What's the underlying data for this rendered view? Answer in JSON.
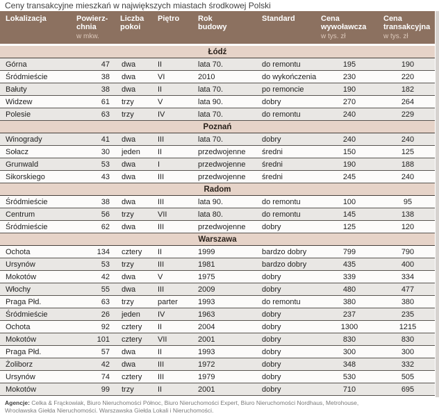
{
  "title": "Ceny transakcyjne mieszkań w największych miastach środkowej Polski",
  "table": {
    "columns": [
      {
        "key": "lokalizacja",
        "lines": [
          "Lokalizacja"
        ],
        "sub": ""
      },
      {
        "key": "powierzchnia",
        "lines": [
          "Powierz-",
          "chnia"
        ],
        "sub": "w mkw."
      },
      {
        "key": "liczba-pokoi",
        "lines": [
          "Liczba",
          "pokoi"
        ],
        "sub": ""
      },
      {
        "key": "pietro",
        "lines": [
          "Piętro"
        ],
        "sub": ""
      },
      {
        "key": "rok-budowy",
        "lines": [
          "Rok",
          "budowy"
        ],
        "sub": ""
      },
      {
        "key": "standard",
        "lines": [
          "Standard"
        ],
        "sub": ""
      },
      {
        "key": "cena-wywolawcza",
        "lines": [
          "Cena",
          "wywoławcza"
        ],
        "sub": "w tys. zł"
      },
      {
        "key": "cena-transakcyjna",
        "lines": [
          "Cena",
          "transakcyjna"
        ],
        "sub": "w tys. zł"
      }
    ]
  },
  "sections": [
    {
      "name": "Łódź",
      "rows": [
        [
          "Górna",
          "47",
          "dwa",
          "II",
          "lata 70.",
          "do remontu",
          "195",
          "190"
        ],
        [
          "Śródmieście",
          "38",
          "dwa",
          "VI",
          "2010",
          "do wykończenia",
          "230",
          "220"
        ],
        [
          "Bałuty",
          "38",
          "dwa",
          "II",
          "lata 70.",
          "po remoncie",
          "190",
          "182"
        ],
        [
          "Widzew",
          "61",
          "trzy",
          "V",
          "lata 90.",
          "dobry",
          "270",
          "264"
        ],
        [
          "Polesie",
          "63",
          "trzy",
          "IV",
          "lata 70.",
          "do remontu",
          "240",
          "229"
        ]
      ]
    },
    {
      "name": "Poznań",
      "rows": [
        [
          "Winogrady",
          "41",
          "dwa",
          "III",
          "lata 70.",
          "dobry",
          "240",
          "240"
        ],
        [
          "Sołacz",
          "30",
          "jeden",
          "II",
          "przedwojenne",
          "średni",
          "150",
          "125"
        ],
        [
          "Grunwald",
          "53",
          "dwa",
          "I",
          "przedwojenne",
          "średni",
          "190",
          "188"
        ],
        [
          "Sikorskiego",
          "43",
          "dwa",
          "III",
          "przedwojenne",
          "średni",
          "245",
          "240"
        ]
      ]
    },
    {
      "name": "Radom",
      "rows": [
        [
          "Śródmieście",
          "38",
          "dwa",
          "III",
          "lata 90.",
          "do remontu",
          "100",
          "95"
        ],
        [
          "Centrum",
          "56",
          "trzy",
          "VII",
          "lata 80.",
          "do remontu",
          "145",
          "138"
        ],
        [
          "Śródmieście",
          "62",
          "dwa",
          "III",
          "przedwojenne",
          "dobry",
          "125",
          "120"
        ]
      ]
    },
    {
      "name": "Warszawa",
      "rows": [
        [
          "Ochota",
          "134",
          "cztery",
          "II",
          "1999",
          "bardzo dobry",
          "799",
          "790"
        ],
        [
          "Ursynów",
          "53",
          "trzy",
          "III",
          "1981",
          "bardzo dobry",
          "435",
          "400"
        ],
        [
          "Mokotów",
          "42",
          "dwa",
          "V",
          "1975",
          "dobry",
          "339",
          "334"
        ],
        [
          "Włochy",
          "55",
          "dwa",
          "III",
          "2009",
          "dobry",
          "480",
          "477"
        ],
        [
          "Praga Płd.",
          "63",
          "trzy",
          "parter",
          "1993",
          "do remontu",
          "380",
          "380"
        ],
        [
          "Śródmieście",
          "26",
          "jeden",
          "IV",
          "1963",
          "dobry",
          "237",
          "235"
        ],
        [
          "Ochota",
          "92",
          "cztery",
          "II",
          "2004",
          "dobry",
          "1300",
          "1215"
        ],
        [
          "Mokotów",
          "101",
          "cztery",
          "VII",
          "2001",
          "dobry",
          "830",
          "830"
        ],
        [
          "Praga Płd.",
          "57",
          "dwa",
          "II",
          "1993",
          "dobry",
          "300",
          "300"
        ],
        [
          "Żoliborz",
          "42",
          "dwa",
          "III",
          "1972",
          "dobry",
          "348",
          "332"
        ],
        [
          "Ursynów",
          "74",
          "cztery",
          "III",
          "1979",
          "dobry",
          "530",
          "505"
        ],
        [
          "Mokotów",
          "99",
          "trzy",
          "II",
          "2001",
          "dobry",
          "710",
          "695"
        ]
      ]
    }
  ],
  "footer": {
    "label": "Agencje:",
    "line1": "Celka & Frąckowiak,  Biuro Nieruchomości Północ, Biuro Nieruchomości Expert, Biuro Nieruchomości Nordhaus, Metrohouse,",
    "line2": "Wrocławska Giełda Nieruchomości. Warszawska Giełda Lokali i Nieruchomości."
  },
  "colors": {
    "header_bg": "#8c7160",
    "header_sub_text": "#ddc9bb",
    "section_bg": "#e6d3c8",
    "row_shade": "#e9e7e4",
    "row_plain": "#fcfbfa"
  }
}
